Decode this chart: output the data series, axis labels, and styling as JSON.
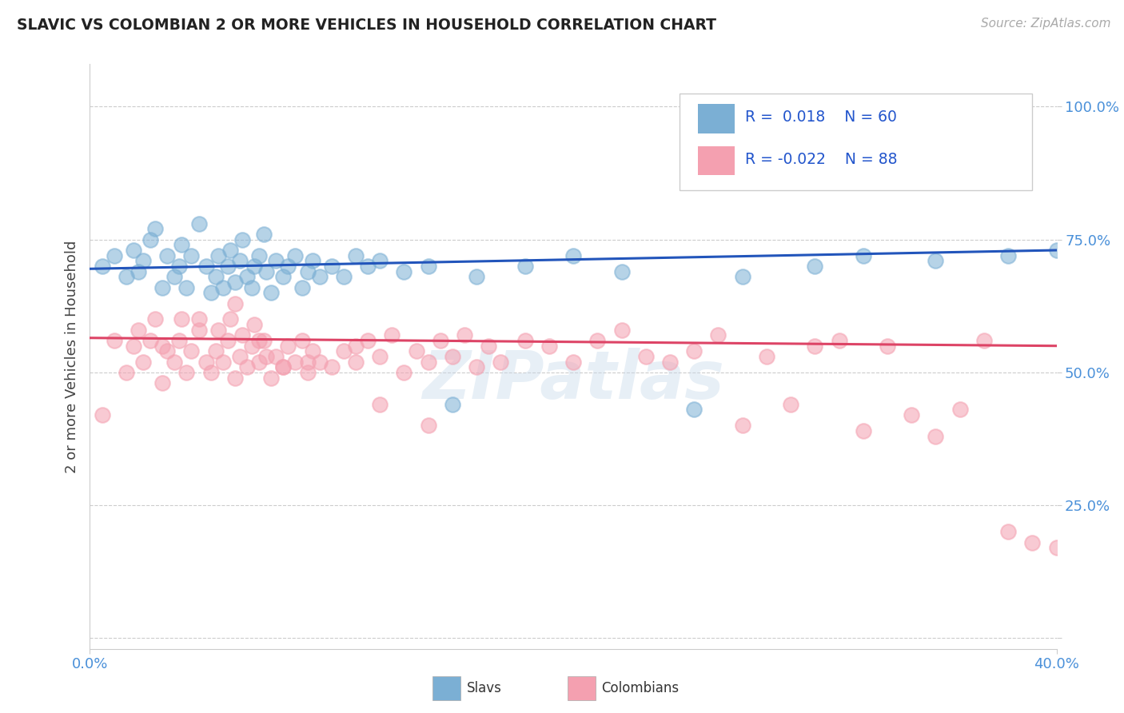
{
  "title": "SLAVIC VS COLOMBIAN 2 OR MORE VEHICLES IN HOUSEHOLD CORRELATION CHART",
  "source": "Source: ZipAtlas.com",
  "ylabel": "2 or more Vehicles in Household",
  "xtick_labels": [
    "0.0%",
    "40.0%"
  ],
  "yticks": [
    0.0,
    0.25,
    0.5,
    0.75,
    1.0
  ],
  "ytick_labels": [
    "",
    "25.0%",
    "50.0%",
    "75.0%",
    "100.0%"
  ],
  "xlim": [
    0.0,
    0.4
  ],
  "ylim": [
    -0.02,
    1.08
  ],
  "slavs_color": "#7bafd4",
  "colombians_color": "#f4a0b0",
  "slavs_line_color": "#2255bb",
  "colombians_line_color": "#dd4466",
  "watermark": "ZIPatlas",
  "slavs_x": [
    0.005,
    0.01,
    0.015,
    0.018,
    0.02,
    0.022,
    0.025,
    0.027,
    0.03,
    0.032,
    0.035,
    0.037,
    0.038,
    0.04,
    0.042,
    0.045,
    0.048,
    0.05,
    0.052,
    0.053,
    0.055,
    0.057,
    0.058,
    0.06,
    0.062,
    0.063,
    0.065,
    0.067,
    0.068,
    0.07,
    0.072,
    0.073,
    0.075,
    0.077,
    0.08,
    0.082,
    0.085,
    0.088,
    0.09,
    0.092,
    0.095,
    0.1,
    0.105,
    0.11,
    0.115,
    0.12,
    0.13,
    0.14,
    0.15,
    0.16,
    0.18,
    0.2,
    0.22,
    0.25,
    0.27,
    0.3,
    0.32,
    0.35,
    0.38,
    0.4
  ],
  "slavs_y": [
    0.7,
    0.72,
    0.68,
    0.73,
    0.69,
    0.71,
    0.75,
    0.77,
    0.66,
    0.72,
    0.68,
    0.7,
    0.74,
    0.66,
    0.72,
    0.78,
    0.7,
    0.65,
    0.68,
    0.72,
    0.66,
    0.7,
    0.73,
    0.67,
    0.71,
    0.75,
    0.68,
    0.66,
    0.7,
    0.72,
    0.76,
    0.69,
    0.65,
    0.71,
    0.68,
    0.7,
    0.72,
    0.66,
    0.69,
    0.71,
    0.68,
    0.7,
    0.68,
    0.72,
    0.7,
    0.71,
    0.69,
    0.7,
    0.44,
    0.68,
    0.7,
    0.72,
    0.69,
    0.43,
    0.68,
    0.7,
    0.72,
    0.71,
    0.72,
    0.73
  ],
  "colombians_x": [
    0.005,
    0.01,
    0.015,
    0.018,
    0.02,
    0.022,
    0.025,
    0.027,
    0.03,
    0.032,
    0.035,
    0.037,
    0.038,
    0.04,
    0.042,
    0.045,
    0.048,
    0.05,
    0.052,
    0.053,
    0.055,
    0.057,
    0.058,
    0.06,
    0.062,
    0.063,
    0.065,
    0.067,
    0.068,
    0.07,
    0.072,
    0.073,
    0.075,
    0.077,
    0.08,
    0.082,
    0.085,
    0.088,
    0.09,
    0.092,
    0.095,
    0.1,
    0.105,
    0.11,
    0.115,
    0.12,
    0.125,
    0.13,
    0.135,
    0.14,
    0.145,
    0.15,
    0.155,
    0.16,
    0.165,
    0.17,
    0.18,
    0.19,
    0.2,
    0.21,
    0.22,
    0.23,
    0.24,
    0.25,
    0.26,
    0.27,
    0.28,
    0.29,
    0.3,
    0.31,
    0.32,
    0.33,
    0.34,
    0.35,
    0.36,
    0.37,
    0.38,
    0.39,
    0.4,
    0.03,
    0.045,
    0.06,
    0.07,
    0.08,
    0.09,
    0.11,
    0.12,
    0.14
  ],
  "colombians_y": [
    0.42,
    0.56,
    0.5,
    0.55,
    0.58,
    0.52,
    0.56,
    0.6,
    0.48,
    0.54,
    0.52,
    0.56,
    0.6,
    0.5,
    0.54,
    0.58,
    0.52,
    0.5,
    0.54,
    0.58,
    0.52,
    0.56,
    0.6,
    0.49,
    0.53,
    0.57,
    0.51,
    0.55,
    0.59,
    0.52,
    0.56,
    0.53,
    0.49,
    0.53,
    0.51,
    0.55,
    0.52,
    0.56,
    0.5,
    0.54,
    0.52,
    0.51,
    0.54,
    0.52,
    0.56,
    0.53,
    0.57,
    0.5,
    0.54,
    0.52,
    0.56,
    0.53,
    0.57,
    0.51,
    0.55,
    0.52,
    0.56,
    0.55,
    0.52,
    0.56,
    0.58,
    0.53,
    0.52,
    0.54,
    0.57,
    0.4,
    0.53,
    0.44,
    0.55,
    0.56,
    0.39,
    0.55,
    0.42,
    0.38,
    0.43,
    0.56,
    0.2,
    0.18,
    0.17,
    0.55,
    0.6,
    0.63,
    0.56,
    0.51,
    0.52,
    0.55,
    0.44,
    0.4
  ]
}
